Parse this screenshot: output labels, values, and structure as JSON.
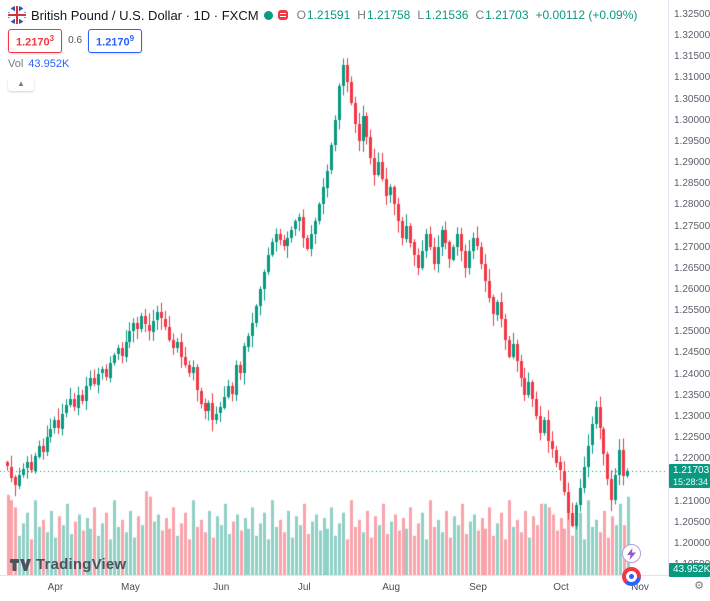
{
  "header": {
    "symbol_title": "British Pound / U.S. Dollar · 1D · FXCM",
    "ohlc": {
      "o_label": "O",
      "o": "1.21591",
      "h_label": "H",
      "h": "1.21758",
      "l_label": "L",
      "l": "1.21536",
      "c_label": "C",
      "c": "1.21703",
      "change": "+0.00112 (+0.09%)"
    },
    "bid": "1.2170",
    "bid_sup": "3",
    "spread": "0.6",
    "ask": "1.2170",
    "ask_sup": "9",
    "vol_label": "Vol",
    "vol_value": "43.952K"
  },
  "colors": {
    "up": "#089981",
    "down": "#f23645",
    "up_volume": "rgba(8,153,129,0.45)",
    "down_volume": "rgba(242,54,69,0.45)",
    "bid": "#f23645",
    "ask": "#2962ff",
    "accent_blue": "#2962ff",
    "axis_text": "#5d606b"
  },
  "price_axis": {
    "ticks": [
      "1.32500",
      "1.32000",
      "1.31500",
      "1.31000",
      "1.30500",
      "1.30000",
      "1.29500",
      "1.29000",
      "1.28500",
      "1.28000",
      "1.27500",
      "1.27000",
      "1.26500",
      "1.26000",
      "1.25500",
      "1.25000",
      "1.24500",
      "1.24000",
      "1.23500",
      "1.23000",
      "1.22500",
      "1.22000",
      "1.21500",
      "1.21000",
      "1.20500",
      "1.20000",
      "1.19500"
    ],
    "price_tag": "1.21703",
    "countdown": "15:28:34",
    "volume_tag": "43.952K"
  },
  "time_axis": {
    "months": [
      {
        "label": "Apr",
        "i": 12
      },
      {
        "label": "May",
        "i": 31
      },
      {
        "label": "Jun",
        "i": 54
      },
      {
        "label": "Jul",
        "i": 75
      },
      {
        "label": "Aug",
        "i": 97
      },
      {
        "label": "Sep",
        "i": 119
      },
      {
        "label": "Oct",
        "i": 140
      },
      {
        "label": "Nov",
        "i": 160
      }
    ]
  },
  "footer": {
    "logo_text": "TradingView"
  },
  "chart_data": {
    "type": "candlestick",
    "title": "British Pound / U.S. Dollar",
    "symbol": "GBPUSD",
    "timeframe": "1D",
    "exchange": "FXCM",
    "ylim": [
      1.195,
      1.325
    ],
    "grid": false,
    "current_price": 1.21703,
    "first_open": 1.219,
    "closes": [
      1.218,
      1.2155,
      1.2135,
      1.216,
      1.2175,
      1.219,
      1.217,
      1.2205,
      1.223,
      1.2215,
      1.225,
      1.227,
      1.229,
      1.227,
      1.2305,
      1.2325,
      1.234,
      1.232,
      1.235,
      1.2335,
      1.237,
      1.239,
      1.2375,
      1.24,
      1.241,
      1.239,
      1.2425,
      1.2445,
      1.246,
      1.244,
      1.2475,
      1.25,
      1.252,
      1.2505,
      1.2535,
      1.2515,
      1.25,
      1.2525,
      1.2545,
      1.253,
      1.251,
      1.248,
      1.246,
      1.2475,
      1.244,
      1.242,
      1.24,
      1.2415,
      1.236,
      1.233,
      1.231,
      1.233,
      1.229,
      1.2305,
      1.232,
      1.2345,
      1.237,
      1.235,
      1.242,
      1.24,
      1.2465,
      1.249,
      1.252,
      1.256,
      1.26,
      1.264,
      1.268,
      1.271,
      1.273,
      1.2715,
      1.27,
      1.272,
      1.274,
      1.276,
      1.277,
      1.272,
      1.2695,
      1.273,
      1.276,
      1.28,
      1.284,
      1.288,
      1.294,
      1.3,
      1.308,
      1.313,
      1.309,
      1.304,
      1.299,
      1.295,
      1.301,
      1.296,
      1.291,
      1.287,
      1.29,
      1.286,
      1.282,
      1.284,
      1.28,
      1.276,
      1.272,
      1.275,
      1.271,
      1.268,
      1.265,
      1.269,
      1.273,
      1.27,
      1.266,
      1.27,
      1.274,
      1.271,
      1.267,
      1.27,
      1.273,
      1.269,
      1.265,
      1.269,
      1.272,
      1.27,
      1.266,
      1.262,
      1.258,
      1.254,
      1.257,
      1.253,
      1.248,
      1.244,
      1.247,
      1.243,
      1.239,
      1.235,
      1.238,
      1.234,
      1.23,
      1.226,
      1.229,
      1.224,
      1.222,
      1.219,
      1.217,
      1.212,
      1.207,
      1.204,
      1.209,
      1.213,
      1.218,
      1.223,
      1.228,
      1.232,
      1.227,
      1.221,
      1.215,
      1.21,
      1.216,
      1.222,
      1.21591,
      1.21703
    ],
    "volumes": [
      45,
      42,
      38,
      22,
      29,
      35,
      20,
      42,
      27,
      31,
      24,
      36,
      21,
      33,
      28,
      40,
      23,
      30,
      34,
      25,
      32,
      26,
      38,
      22,
      29,
      35,
      20,
      42,
      27,
      31,
      24,
      36,
      21,
      33,
      28,
      47,
      44,
      30,
      34,
      25,
      32,
      26,
      38,
      22,
      29,
      35,
      20,
      42,
      27,
      31,
      24,
      36,
      21,
      33,
      28,
      40,
      23,
      30,
      34,
      25,
      32,
      26,
      38,
      22,
      29,
      35,
      20,
      42,
      27,
      31,
      24,
      36,
      21,
      33,
      28,
      40,
      23,
      30,
      34,
      25,
      32,
      26,
      38,
      22,
      29,
      35,
      20,
      42,
      27,
      31,
      24,
      36,
      21,
      33,
      28,
      40,
      23,
      30,
      34,
      25,
      32,
      26,
      38,
      22,
      29,
      35,
      20,
      42,
      27,
      31,
      24,
      36,
      21,
      33,
      28,
      40,
      23,
      30,
      34,
      25,
      32,
      26,
      38,
      22,
      29,
      35,
      20,
      42,
      27,
      31,
      24,
      36,
      21,
      33,
      28,
      40,
      40,
      38,
      34,
      25,
      32,
      26,
      38,
      22,
      29,
      35,
      20,
      42,
      27,
      31,
      24,
      36,
      21,
      33,
      28,
      40,
      28,
      43.952
    ],
    "wick_overrides": [
      {
        "i": 2,
        "low": 1.211
      },
      {
        "i": 85,
        "high": 1.3145
      },
      {
        "i": 143,
        "low": 1.2037
      },
      {
        "i": 153,
        "low": 1.2075
      }
    ],
    "last_candle": {
      "open": 1.21591,
      "high": 1.21758,
      "low": 1.21536,
      "close": 1.21703,
      "volume": 43.952
    }
  }
}
